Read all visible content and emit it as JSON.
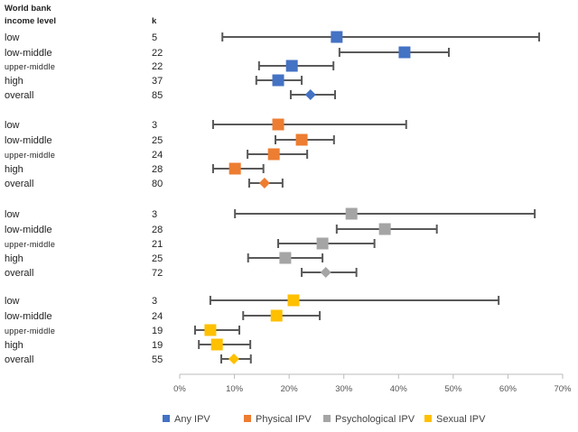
{
  "chart_data": {
    "type": "forest",
    "header": {
      "line1": "World bank",
      "line2": "income level",
      "k": "k"
    },
    "xlim": [
      0,
      70
    ],
    "xticks": [
      "0%",
      "10%",
      "20%",
      "30%",
      "40%",
      "50%",
      "60%",
      "70%"
    ],
    "colors": {
      "Any IPV": "#4472C4",
      "Physical IPV": "#ED7D31",
      "Psychological IPV": "#A5A5A5",
      "Sexual IPV": "#FFC000",
      "whisker": "#595959"
    },
    "legend": {
      "placement": "bottom",
      "entries": [
        "Any IPV",
        "Physical IPV",
        "Psychological IPV",
        "Sexual IPV"
      ]
    },
    "groups": [
      {
        "series": "Any IPV",
        "rows": [
          {
            "label": "low",
            "k": "5",
            "est": 28.7,
            "lo": 7.8,
            "hi": 65.7
          },
          {
            "label": "low-middle",
            "k": "22",
            "est": 41.1,
            "lo": 29.2,
            "hi": 49.2
          },
          {
            "label": "upper-middle",
            "k": "22",
            "est": 20.5,
            "lo": 14.5,
            "hi": 28.1
          },
          {
            "label": "high",
            "k": "37",
            "est": 18.0,
            "lo": 14.0,
            "hi": 22.3
          },
          {
            "label": "overall",
            "k": "85",
            "est": 23.9,
            "lo": 20.3,
            "hi": 28.4
          }
        ]
      },
      {
        "series": "Physical IPV",
        "rows": [
          {
            "label": "low",
            "k": "3",
            "est": 18.0,
            "lo": 6.1,
            "hi": 41.4
          },
          {
            "label": "low-middle",
            "k": "25",
            "est": 22.3,
            "lo": 17.5,
            "hi": 28.2
          },
          {
            "label": "upper-middle",
            "k": "24",
            "est": 17.2,
            "lo": 12.4,
            "hi": 23.3
          },
          {
            "label": "high",
            "k": "28",
            "est": 10.1,
            "lo": 6.1,
            "hi": 15.3
          },
          {
            "label": "overall",
            "k": "80",
            "est": 15.5,
            "lo": 12.7,
            "hi": 18.8
          }
        ]
      },
      {
        "series": "Psychological IPV",
        "rows": [
          {
            "label": "low",
            "k": "3",
            "est": 31.4,
            "lo": 10.1,
            "hi": 64.9
          },
          {
            "label": "low-middle",
            "k": "28",
            "est": 37.5,
            "lo": 28.7,
            "hi": 47.0
          },
          {
            "label": "upper-middle",
            "k": "21",
            "est": 26.1,
            "lo": 18.0,
            "hi": 35.6
          },
          {
            "label": "high",
            "k": "25",
            "est": 19.3,
            "lo": 12.5,
            "hi": 26.1
          },
          {
            "label": "overall",
            "k": "72",
            "est": 26.7,
            "lo": 22.3,
            "hi": 32.3
          }
        ]
      },
      {
        "series": "Sexual IPV",
        "rows": [
          {
            "label": "low",
            "k": "3",
            "est": 20.8,
            "lo": 5.6,
            "hi": 58.3
          },
          {
            "label": "low-middle",
            "k": "24",
            "est": 17.7,
            "lo": 11.6,
            "hi": 25.6
          },
          {
            "label": "upper-middle",
            "k": "19",
            "est": 5.6,
            "lo": 2.8,
            "hi": 10.9
          },
          {
            "label": "high",
            "k": "19",
            "est": 6.8,
            "lo": 3.5,
            "hi": 12.9
          },
          {
            "label": "overall",
            "k": "55",
            "est": 9.9,
            "lo": 7.6,
            "hi": 13.0
          }
        ]
      }
    ]
  }
}
